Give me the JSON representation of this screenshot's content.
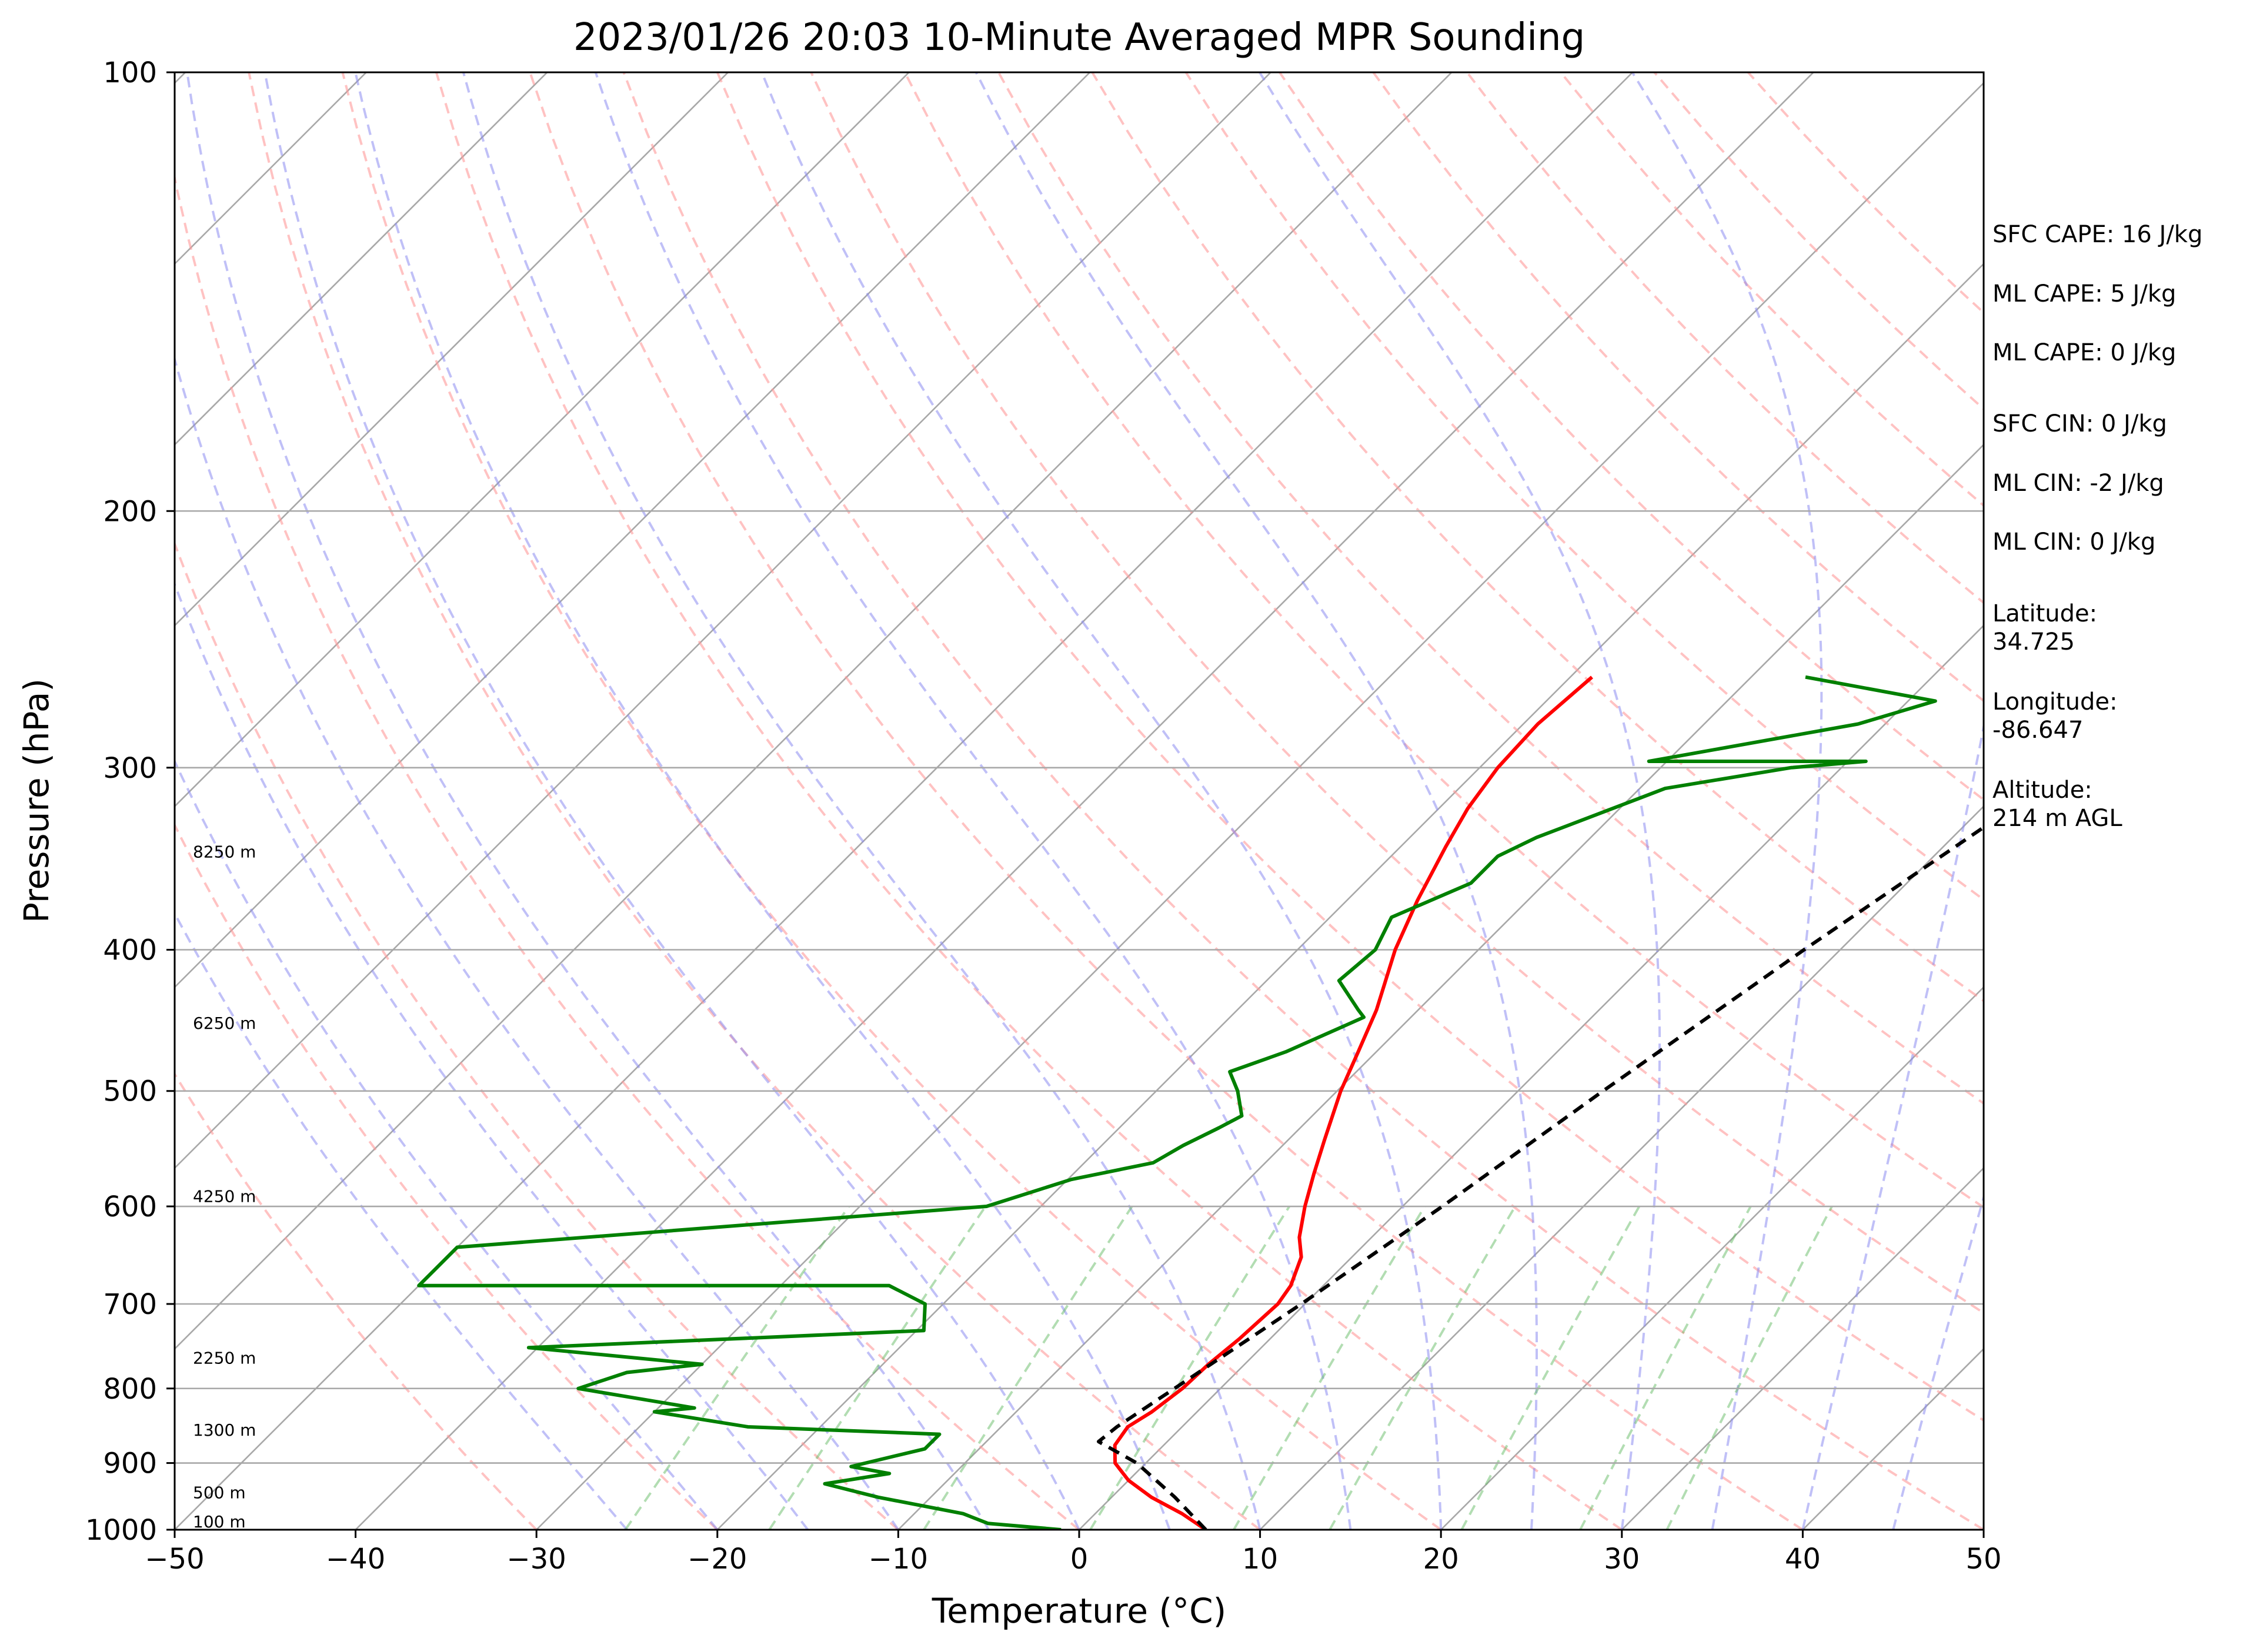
{
  "chart_data": {
    "type": "line",
    "title": "2023/01/26 20:03 10-Minute Averaged MPR Sounding",
    "xlabel": "Temperature (°C)",
    "ylabel": "Pressure (hPa)",
    "xlim": [
      -50,
      50
    ],
    "ylim": [
      1000,
      100
    ],
    "y_scale": "log",
    "x_ticks": [
      -50,
      -40,
      -30,
      -20,
      -10,
      0,
      10,
      20,
      30,
      40,
      50
    ],
    "x_tick_labels": [
      "−50",
      "−40",
      "−30",
      "−20",
      "−10",
      "0",
      "10",
      "20",
      "30",
      "40",
      "50"
    ],
    "y_ticks": [
      100,
      200,
      300,
      400,
      500,
      600,
      700,
      800,
      900,
      1000
    ],
    "y_tick_labels": [
      "100",
      "200",
      "300",
      "400",
      "500",
      "600",
      "700",
      "800",
      "900",
      "1000"
    ],
    "grid": true,
    "series": [
      {
        "color": "#ff0000",
        "points": [
          [
            1000,
            7.0
          ],
          [
            975,
            4.8
          ],
          [
            950,
            2.2
          ],
          [
            925,
            0.0
          ],
          [
            900,
            -1.7
          ],
          [
            875,
            -2.7
          ],
          [
            850,
            -3.0
          ],
          [
            830,
            -2.5
          ],
          [
            800,
            -2.1
          ],
          [
            770,
            -2.0
          ],
          [
            740,
            -1.7
          ],
          [
            700,
            -1.5
          ],
          [
            680,
            -1.8
          ],
          [
            650,
            -2.8
          ],
          [
            630,
            -4.0
          ],
          [
            600,
            -5.4
          ],
          [
            570,
            -6.7
          ],
          [
            540,
            -8.0
          ],
          [
            500,
            -9.8
          ],
          [
            470,
            -11.0
          ],
          [
            440,
            -12.3
          ],
          [
            400,
            -14.6
          ],
          [
            370,
            -16.1
          ],
          [
            340,
            -17.5
          ],
          [
            320,
            -18.4
          ],
          [
            300,
            -19.0
          ],
          [
            280,
            -19.2
          ],
          [
            260,
            -18.8
          ]
        ]
      },
      {
        "color": "#008000",
        "points": [
          [
            1000,
            -1.0
          ],
          [
            990,
            -5.4
          ],
          [
            975,
            -7.3
          ],
          [
            950,
            -12.9
          ],
          [
            930,
            -16.6
          ],
          [
            915,
            -13.6
          ],
          [
            905,
            -16.1
          ],
          [
            880,
            -13.0
          ],
          [
            860,
            -13.0
          ],
          [
            850,
            -24.0
          ],
          [
            830,
            -30.0
          ],
          [
            825,
            -28.0
          ],
          [
            800,
            -35.5
          ],
          [
            780,
            -33.7
          ],
          [
            770,
            -30.0
          ],
          [
            750,
            -40.5
          ],
          [
            730,
            -19.6
          ],
          [
            700,
            -21.0
          ],
          [
            680,
            -24.0
          ],
          [
            680,
            -50.0
          ],
          [
            640,
            -50.0
          ],
          [
            600,
            -23.0
          ],
          [
            575,
            -19.8
          ],
          [
            560,
            -16.2
          ],
          [
            545,
            -15.5
          ],
          [
            530,
            -14.5
          ],
          [
            520,
            -13.9
          ],
          [
            500,
            -15.5
          ],
          [
            485,
            -17.0
          ],
          [
            470,
            -15.0
          ],
          [
            445,
            -12.6
          ],
          [
            440,
            -13.3
          ],
          [
            420,
            -16.0
          ],
          [
            400,
            -15.7
          ],
          [
            380,
            -16.6
          ],
          [
            360,
            -14.1
          ],
          [
            345,
            -14.1
          ],
          [
            335,
            -13.0
          ],
          [
            310,
            -8.6
          ],
          [
            300,
            -2.8
          ],
          [
            297,
            1.0
          ],
          [
            297,
            -11.0
          ],
          [
            280,
            -1.5
          ],
          [
            270,
            1.5
          ],
          [
            260,
            -7.0
          ]
        ]
      },
      {
        "color": "#000000",
        "points": [
          [
            1000,
            7.0
          ],
          [
            950,
            3.5
          ],
          [
            900,
            -0.5
          ],
          [
            870,
            -3.8
          ],
          [
            850,
            -3.6
          ],
          [
            700,
            -0.2
          ],
          [
            600,
            2.2
          ],
          [
            500,
            4.7
          ],
          [
            400,
            8.0
          ],
          [
            300,
            12.7
          ],
          [
            263,
            14.2
          ]
        ]
      }
    ],
    "height_labels": [
      {
        "text": "100 m",
        "p": 1000
      },
      {
        "text": "500 m",
        "p": 955
      },
      {
        "text": "1300 m",
        "p": 865
      },
      {
        "text": "2250 m",
        "p": 772
      },
      {
        "text": "4250 m",
        "p": 598
      },
      {
        "text": "6250 m",
        "p": 455
      },
      {
        "text": "8250 m",
        "p": 347
      }
    ],
    "annotations": [
      "SFC CAPE: 16 J/kg",
      "ML CAPE: 5 J/kg",
      "ML CAPE: 0 J/kg",
      "SFC CIN: 0 J/kg",
      "ML CIN: -2 J/kg",
      "ML CIN: 0 J/kg",
      "Latitude:\n34.725",
      "Longitude:\n-86.647",
      "Altitude:\n214 m AGL"
    ]
  }
}
